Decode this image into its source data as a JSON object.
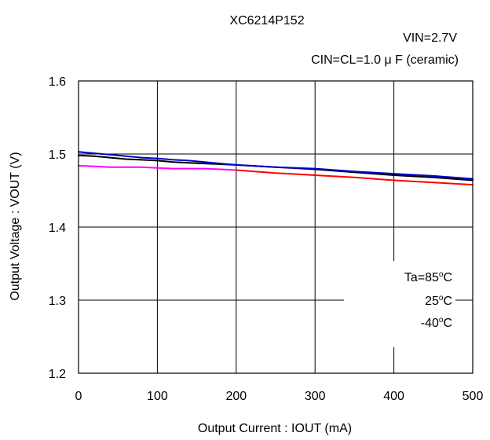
{
  "chart_data": {
    "type": "line",
    "title": "XC6214P152",
    "conditions": [
      "VIN=2.7V",
      "CIN=CL=1.0 μ F  (ceramic)"
    ],
    "xlabel": "Output Current : IOUT (mA)",
    "ylabel": "Output Voltage : VOUT (V)",
    "xlim": [
      0,
      500
    ],
    "ylim": [
      1.2,
      1.6
    ],
    "xticks": [
      0,
      100,
      200,
      300,
      400,
      500
    ],
    "xtick_labels": [
      "0",
      "100",
      "200",
      "300",
      "400",
      "500"
    ],
    "yticks": [
      1.2,
      1.3,
      1.4,
      1.5,
      1.6
    ],
    "ytick_labels": [
      "1.2",
      "1.3",
      "1.4",
      "1.5",
      "1.6"
    ],
    "grid": true,
    "legend_labels": [
      "Ta=85",
      "25",
      "-40"
    ],
    "legend_unit": "C",
    "legend_degree": "o",
    "legend_placement": "bottom-right",
    "series": [
      {
        "name": "Ta=85°C",
        "color": "#ff00ff",
        "x": [
          0,
          20,
          40,
          60,
          80,
          100,
          120,
          140,
          160,
          180,
          200
        ],
        "y": [
          1.484,
          1.483,
          1.482,
          1.482,
          1.482,
          1.481,
          1.48,
          1.48,
          1.48,
          1.479,
          1.478
        ]
      },
      {
        "name": "25°C",
        "color": "#ff0000",
        "x": [
          200,
          250,
          300,
          350,
          400,
          450,
          500
        ],
        "y": [
          1.478,
          1.474,
          1.471,
          1.468,
          1.464,
          1.461,
          1.458
        ]
      },
      {
        "name": "-40°C",
        "color": "#000000",
        "x": [
          0,
          20,
          40,
          60,
          80,
          100,
          120,
          140,
          160,
          180,
          200,
          250,
          300,
          350,
          400,
          450,
          500
        ],
        "y": [
          1.498,
          1.497,
          1.495,
          1.493,
          1.492,
          1.491,
          1.489,
          1.488,
          1.487,
          1.486,
          1.485,
          1.482,
          1.479,
          1.475,
          1.471,
          1.468,
          1.464
        ]
      },
      {
        "name": "blue",
        "color": "#0000cc",
        "x": [
          0,
          20,
          40,
          60,
          80,
          100,
          120,
          140,
          160,
          180,
          200,
          250,
          300,
          350,
          400,
          450,
          500
        ],
        "y": [
          1.503,
          1.501,
          1.499,
          1.497,
          1.495,
          1.494,
          1.492,
          1.491,
          1.489,
          1.487,
          1.485,
          1.482,
          1.48,
          1.476,
          1.473,
          1.47,
          1.466
        ]
      }
    ]
  }
}
